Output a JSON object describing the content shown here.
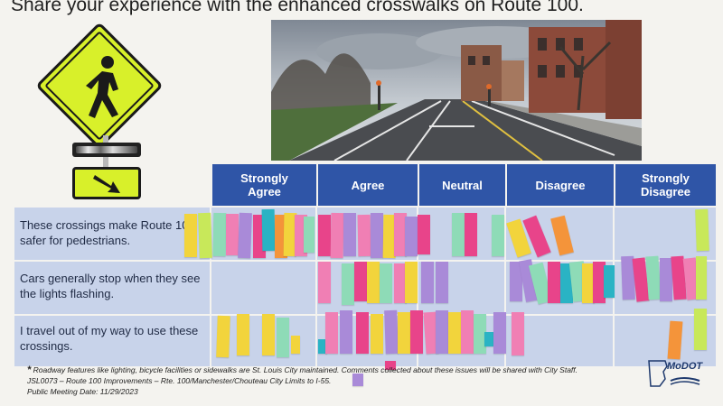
{
  "title": "Share your experience with the enhanced crosswalks on Route 100.",
  "columns": [
    "Strongly\nAgree",
    "Agree",
    "Neutral",
    "Disagree",
    "Strongly\nDisagree"
  ],
  "rows": [
    "These crossings make Route 100 safer for pedestrians.",
    "Cars generally stop when they see the lights flashing.",
    "I travel out of my way to use these crossings."
  ],
  "footer": {
    "note": "Roadway features like lighting, bicycle facilities or sidewalks are St. Louis City maintained. Comments collected about these issues will be shared with City Staff.",
    "project_id": "JSL0073 – Route 100 Improvements – Rte. 100/Manchester/Chouteau City Limits to I-55.",
    "meeting_date": "Public Meeting Date: 11/29/2023"
  },
  "logo_text": "MoDOT",
  "colors": {
    "header_blue": "#2f55a7",
    "row_blue": "#c8d3ea",
    "sign_yellow": "#d8f02a",
    "note_yellow": "#f2d43c",
    "note_pink": "#f07fb4",
    "note_magenta": "#e8448a",
    "note_purple": "#a98ad8",
    "note_green": "#8edbb7",
    "note_teal": "#2ab3c4",
    "note_orange": "#f4943a",
    "note_lime": "#c8e85a"
  }
}
